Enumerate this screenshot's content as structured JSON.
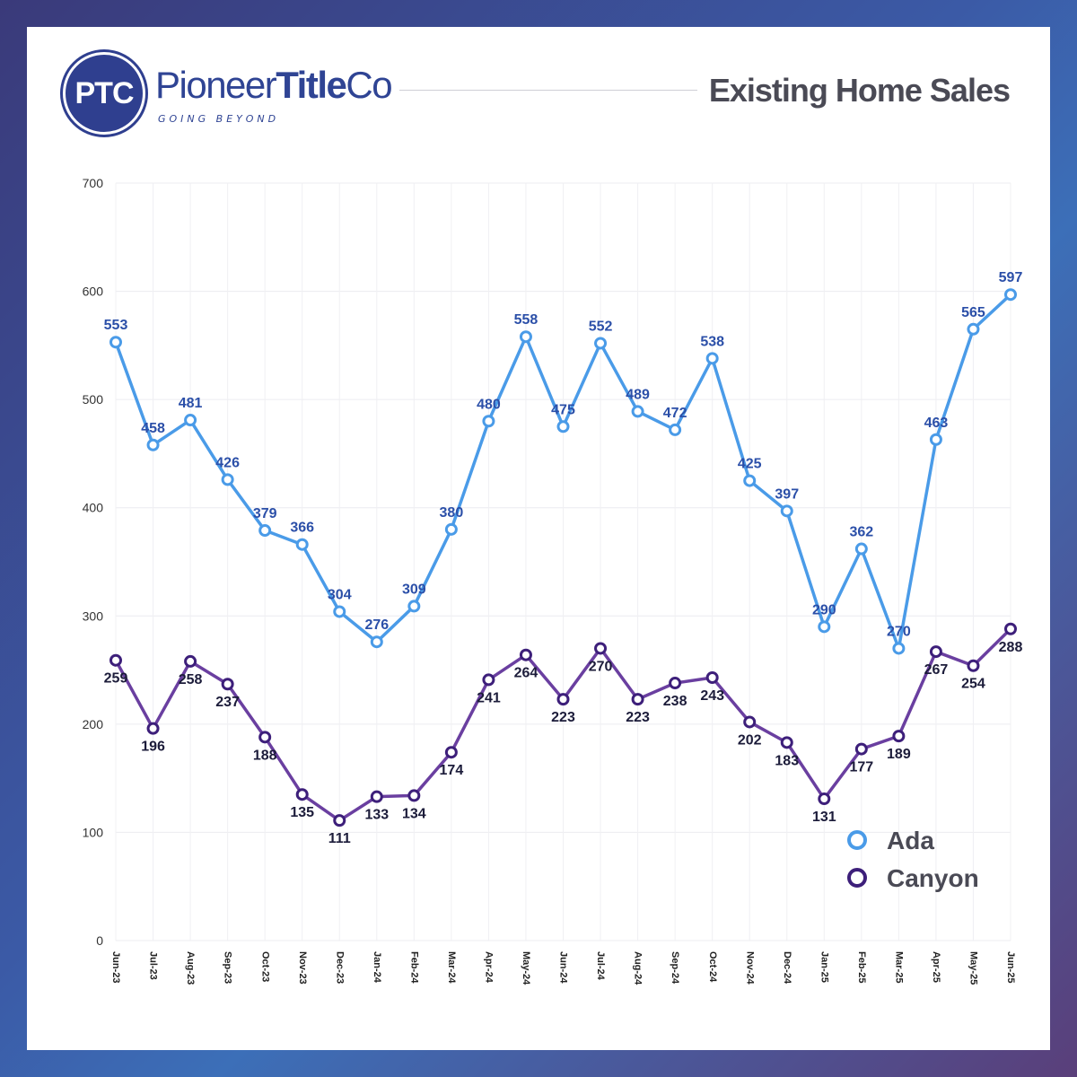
{
  "header": {
    "logo_initials": "PTC",
    "brand_part1": "Pioneer",
    "brand_part2": "Title",
    "brand_part3": "Co",
    "tagline": "GOING BEYOND",
    "title": "Existing Home Sales"
  },
  "colors": {
    "ada": "#4a9be8",
    "canyon": "#6a3fa0",
    "canyon_marker": "#3d1f7a",
    "brand": "#2f4494"
  },
  "chart_data": {
    "type": "line",
    "categories": [
      "Jun-23",
      "Jul-23",
      "Aug-23",
      "Sep-23",
      "Oct-23",
      "Nov-23",
      "Dec-23",
      "Jan-24",
      "Feb-24",
      "Mar-24",
      "Apr-24",
      "May-24",
      "Jun-24",
      "Jul-24",
      "Aug-24",
      "Sep-24",
      "Oct-24",
      "Nov-24",
      "Dec-24",
      "Jan-25",
      "Feb-25",
      "Mar-25",
      "Apr-25",
      "May-25",
      "Jun-25"
    ],
    "series": [
      {
        "name": "Ada",
        "values": [
          553,
          458,
          481,
          426,
          379,
          366,
          304,
          276,
          309,
          380,
          480,
          558,
          475,
          552,
          489,
          472,
          538,
          425,
          397,
          290,
          362,
          270,
          463,
          565,
          597
        ]
      },
      {
        "name": "Canyon",
        "values": [
          259,
          196,
          258,
          237,
          188,
          135,
          111,
          133,
          134,
          174,
          241,
          264,
          223,
          270,
          223,
          238,
          243,
          202,
          183,
          131,
          177,
          189,
          267,
          254,
          288
        ]
      }
    ],
    "ylim": [
      0,
      700
    ],
    "yticks": [
      0,
      100,
      200,
      300,
      400,
      500,
      600,
      700
    ],
    "legend": "bottom-right",
    "grid": true
  }
}
